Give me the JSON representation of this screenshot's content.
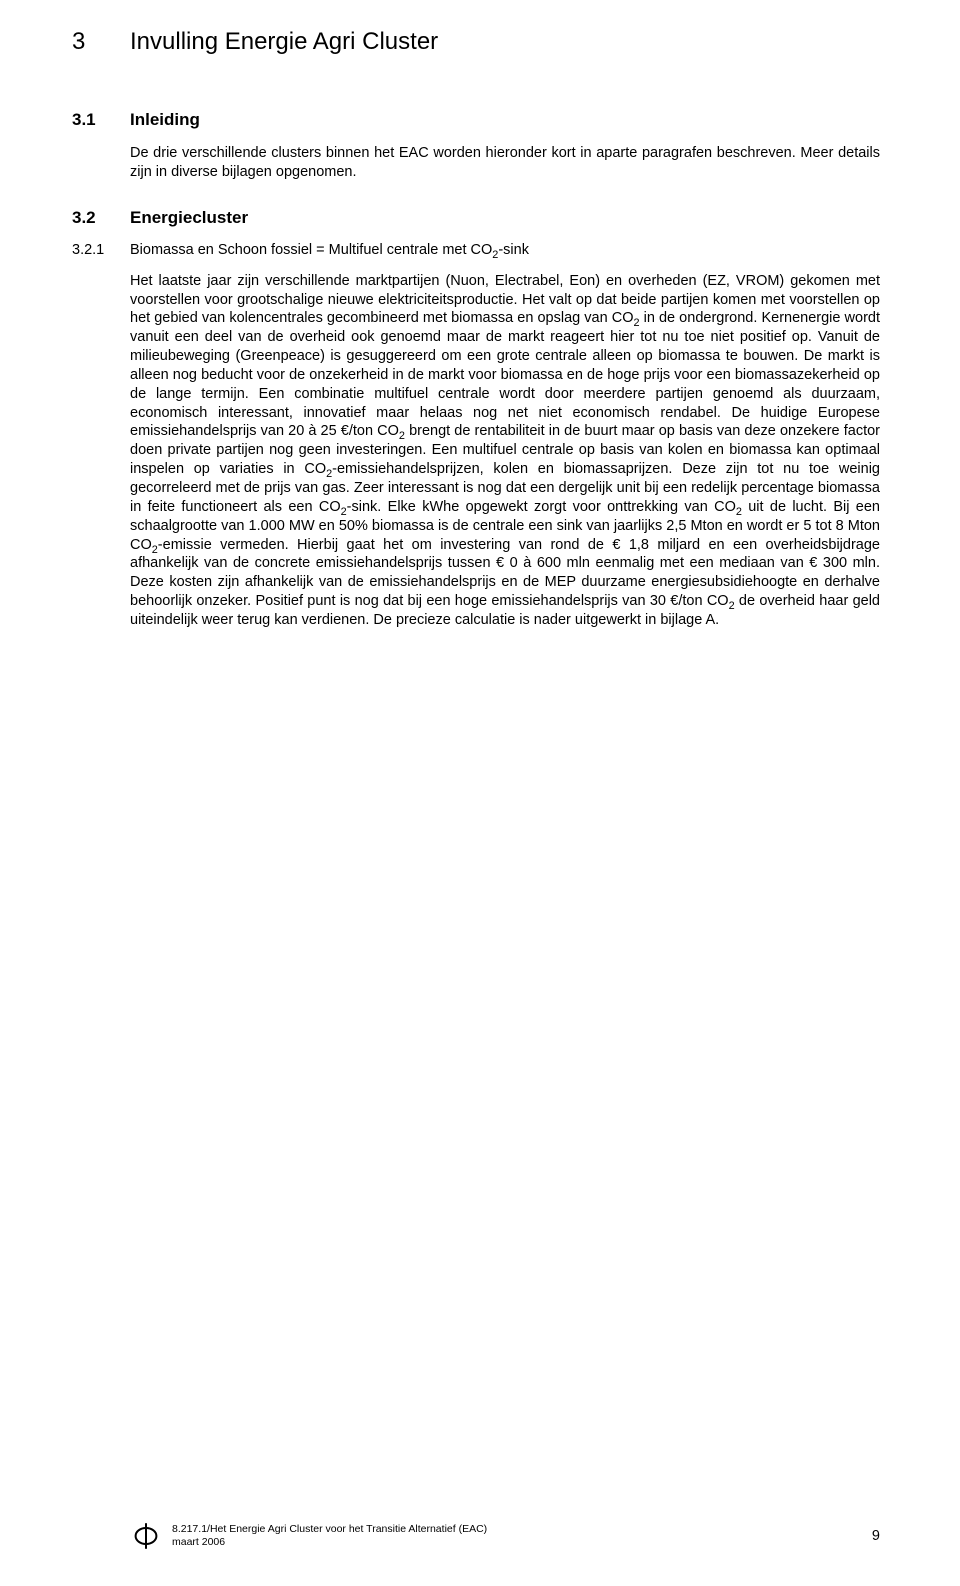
{
  "chapter": {
    "number": "3",
    "title": "Invulling Energie Agri Cluster"
  },
  "section1": {
    "number": "3.1",
    "title": "Inleiding",
    "body": "De drie verschillende clusters binnen het EAC worden hieronder kort in aparte paragrafen beschreven. Meer details zijn in diverse bijlagen opgenomen."
  },
  "section2": {
    "number": "3.2",
    "title": "Energiecluster"
  },
  "subsection": {
    "number": "3.2.1",
    "title_pre": "Biomassa en Schoon fossiel = Multifuel centrale met CO",
    "title_post": "-sink",
    "body_html": "Het laatste jaar zijn verschillende marktpartijen (Nuon, Electrabel, Eon) en overheden (EZ, VROM) gekomen met voorstellen voor grootschalige nieuwe elektriciteitsproductie. Het valt op dat beide partijen komen met voorstellen op het gebied van kolencentrales gecombineerd met biomassa en opslag van CO<sub>2</sub> in de ondergrond. Kernenergie wordt vanuit een deel van de overheid ook genoemd maar de markt reageert hier tot nu toe niet positief op. Vanuit de milieubeweging (Greenpeace) is gesuggereerd om een grote centrale alleen op biomassa te bouwen. De markt is alleen nog beducht voor de onzekerheid in de markt voor biomassa en de hoge prijs voor een biomassazekerheid op de lange termijn. Een combinatie multifuel centrale wordt door meerdere partijen genoemd als duurzaam, economisch interessant, innovatief maar helaas nog net niet economisch rendabel. De huidige Europese emissiehandelsprijs van 20 à 25 €/ton CO<sub>2</sub> brengt de rentabiliteit in de buurt maar op basis van deze onzekere factor doen private partijen nog geen investeringen. Een multifuel centrale op basis van kolen en biomassa kan optimaal inspelen op variaties in CO<sub>2</sub>-emissiehandelsprijzen, kolen en biomassaprijzen. Deze zijn tot nu toe weinig gecorreleerd met de prijs van gas. Zeer interessant is nog dat een dergelijk unit bij een redelijk percentage biomassa in feite functioneert als een CO<sub>2</sub>-sink. Elke kWhe opgewekt zorgt voor onttrekking van CO<sub>2</sub> uit de lucht. Bij een schaalgrootte van 1.000 MW en 50% biomassa is de centrale een sink van jaarlijks 2,5 Mton en wordt er 5 tot 8 Mton CO<sub>2</sub>-emissie vermeden. Hierbij gaat het om investering van rond de € 1,8 miljard en een overheidsbijdrage afhankelijk van de concrete emissiehandelsprijs tussen € 0 à 600 mln eenmalig met een mediaan van € 300 mln. Deze kosten zijn afhankelijk van de emissiehandelsprijs en de MEP duurzame energiesubsidiehoogte en derhalve behoorlijk onzeker. Positief punt is nog dat bij een hoge emissiehandelsprijs van 30 €/ton CO<sub>2</sub> de overheid haar geld uiteindelijk weer terug kan verdienen. De precieze calculatie is nader uitgewerkt in bijlage A."
  },
  "footer": {
    "line1": "8.217.1/Het Energie Agri Cluster voor het Transitie Alternatief (EAC)",
    "line2": "maart 2006",
    "page": "9"
  }
}
